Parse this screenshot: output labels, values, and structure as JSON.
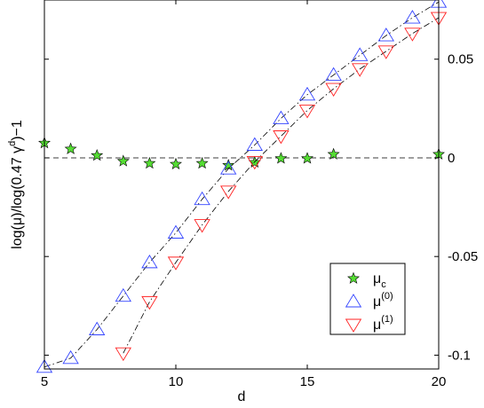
{
  "chart_data": {
    "type": "line",
    "xlabel": "d",
    "ylabel": {
      "base": "log(μ)/log(0.47 γ",
      "sup": "d",
      "tail": ")−1"
    },
    "xlim": [
      5,
      20
    ],
    "ylim": [
      -0.107,
      0.08
    ],
    "x_ticks": [
      5,
      10,
      15,
      20
    ],
    "y_ticks": [
      -0.1,
      -0.05,
      0,
      0.05
    ],
    "y_tick_labels": [
      "-0.1",
      "-0.05",
      "0",
      "0.05"
    ],
    "y_axis_side": "right",
    "grid": false,
    "legend_position": "lower-right",
    "reference_line": {
      "y": 0,
      "style": "dashed",
      "color": "#000000"
    },
    "series": [
      {
        "name": "μ_c",
        "legend": {
          "base": "μ",
          "sub": "c",
          "sup": ""
        },
        "marker": "star",
        "line": "none",
        "color": "#000000",
        "fill": "#55dd33",
        "x": [
          5,
          6,
          7,
          8,
          9,
          10,
          11,
          12,
          13,
          14,
          15,
          16,
          20
        ],
        "y": [
          0.0075,
          0.0045,
          0.0012,
          -0.0017,
          -0.0028,
          -0.0032,
          -0.0028,
          -0.0038,
          -0.0023,
          -0.0003,
          -0.0003,
          0.0018,
          0.0018
        ]
      },
      {
        "name": "μ^(0)",
        "legend": {
          "base": "μ",
          "sub": "",
          "sup": "(0)"
        },
        "marker": "triangle-up",
        "line": "dashdot",
        "color": "#3344ff",
        "x": [
          5,
          6,
          7,
          8,
          9,
          10,
          11,
          12,
          13,
          14,
          15,
          16,
          17,
          18,
          19,
          20
        ],
        "y": [
          -0.106,
          -0.1015,
          -0.087,
          -0.07,
          -0.053,
          -0.038,
          -0.021,
          -0.0055,
          0.0065,
          0.02,
          0.032,
          0.042,
          0.052,
          0.062,
          0.071,
          0.079
        ]
      },
      {
        "name": "μ^(1)",
        "legend": {
          "base": "μ",
          "sub": "",
          "sup": "(1)"
        },
        "marker": "triangle-down",
        "line": "dashdot",
        "color": "#ff2222",
        "x": [
          8,
          9,
          10,
          11,
          12,
          13,
          14,
          15,
          16,
          17,
          18,
          19,
          20
        ],
        "y": [
          -0.099,
          -0.073,
          -0.053,
          -0.034,
          -0.017,
          -0.002,
          0.011,
          0.024,
          0.035,
          0.045,
          0.054,
          0.063,
          0.071
        ]
      }
    ]
  }
}
